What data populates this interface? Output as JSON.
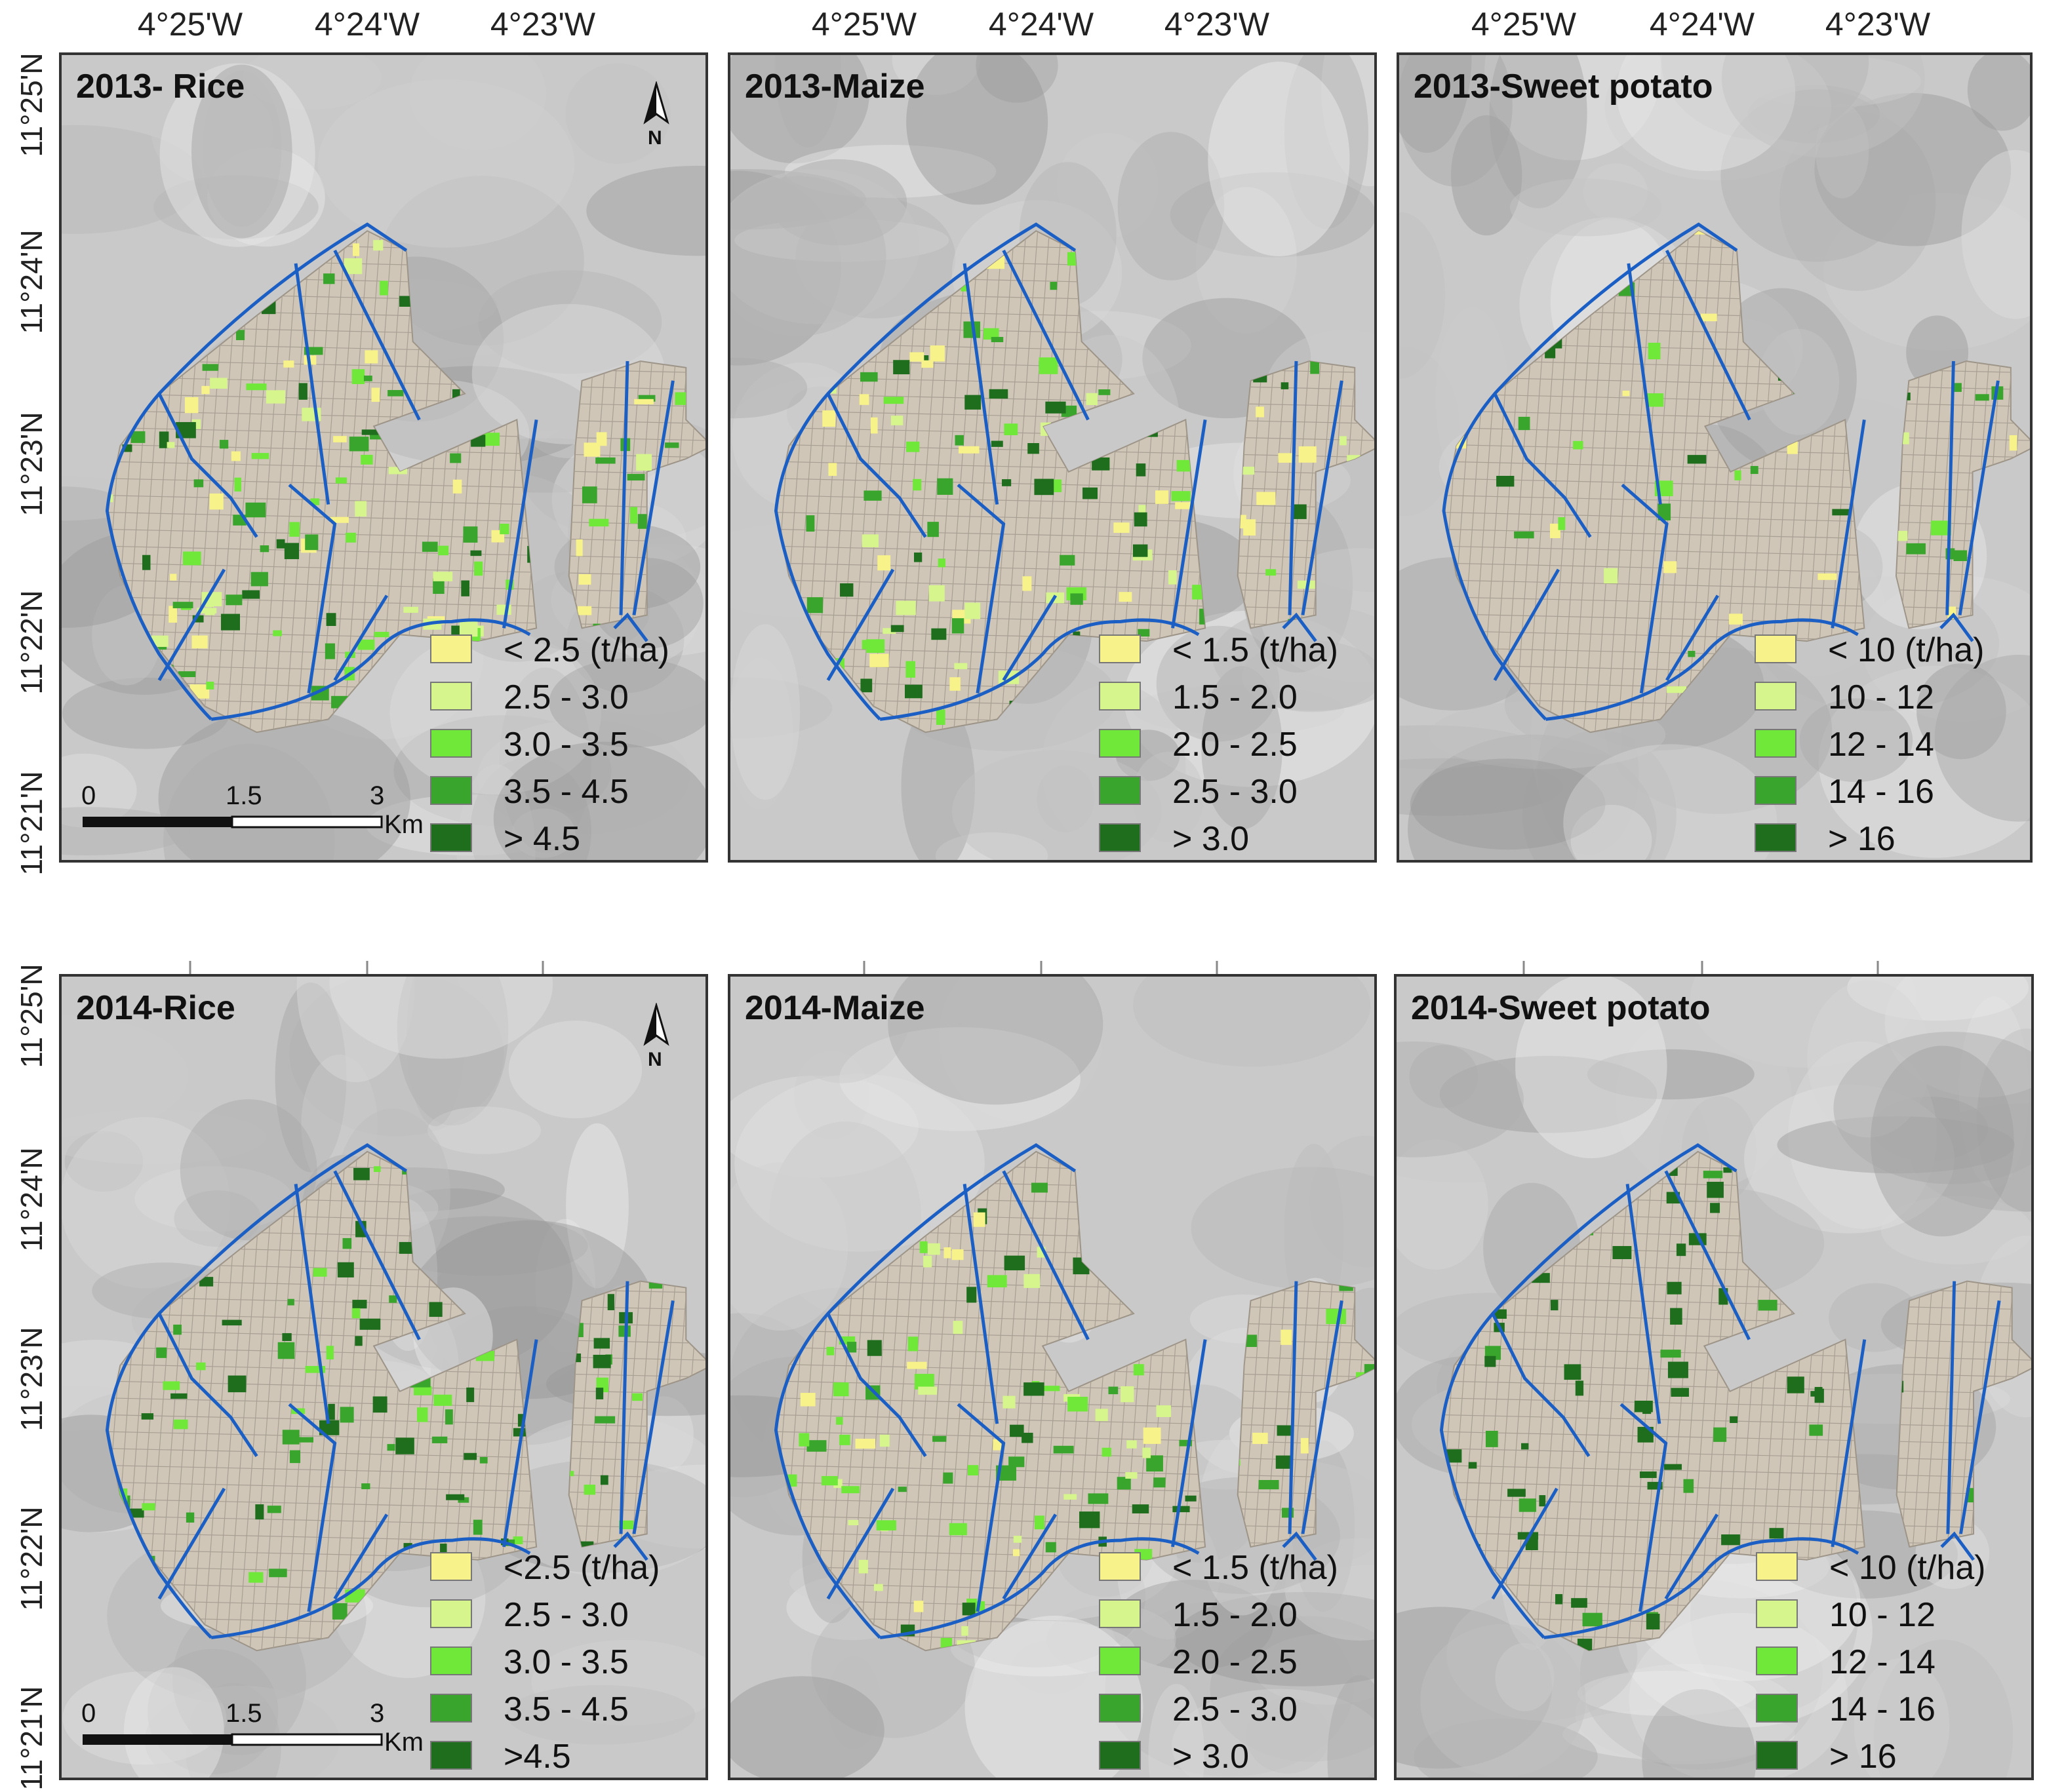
{
  "axes": {
    "longitudes": [
      "4°25'W",
      "4°24'W",
      "4°23'W"
    ],
    "latitudes": [
      "11°25'N",
      "11°24'N",
      "11°23'N",
      "11°22'N",
      "11°21'N"
    ]
  },
  "colors": {
    "c1": "#f7f28a",
    "c2": "#d6f58c",
    "c3": "#6fe83a",
    "c4": "#3aa52c",
    "c5": "#1f6e1d",
    "canal": "#1b5fc4",
    "parcel": "#cfc6b8"
  },
  "north_arrow": {
    "label": "N"
  },
  "scale_bar": {
    "labels": [
      "0",
      "1.5",
      "3"
    ],
    "unit": "Km"
  },
  "panels": [
    {
      "title": "2013- Rice",
      "legend": [
        "< 2.5 (t/ha)",
        "2.5 - 3.0",
        "3.0 - 3.5",
        "3.5 - 4.5",
        "> 4.5"
      ]
    },
    {
      "title": "2013-Maize",
      "legend": [
        "< 1.5 (t/ha)",
        "1.5 - 2.0",
        "2.0 - 2.5",
        "2.5 - 3.0",
        "> 3.0"
      ]
    },
    {
      "title": "2013-Sweet potato",
      "legend": [
        "< 10 (t/ha)",
        "10 - 12",
        "12 - 14",
        "14 - 16",
        "> 16"
      ]
    },
    {
      "title": "2014-Rice",
      "legend": [
        "<2.5 (t/ha)",
        "2.5 - 3.0",
        "3.0 - 3.5",
        "3.5 - 4.5",
        ">4.5"
      ]
    },
    {
      "title": "2014-Maize",
      "legend": [
        "< 1.5 (t/ha)",
        "1.5 - 2.0",
        "2.0 - 2.5",
        "2.5 - 3.0",
        "> 3.0"
      ]
    },
    {
      "title": "2014-Sweet potato",
      "legend": [
        "< 10 (t/ha)",
        "10 - 12",
        "12 - 14",
        "14 - 16",
        "> 16"
      ]
    }
  ]
}
